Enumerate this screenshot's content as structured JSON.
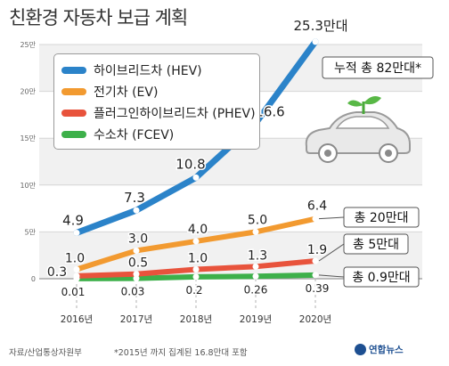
{
  "title": "친환경 자동차 보급 계획",
  "chart_data": {
    "type": "line",
    "categories": [
      "2016년",
      "2017년",
      "2018년",
      "2019년",
      "2020년"
    ],
    "ylim": [
      0,
      25
    ],
    "yticks": [
      "0",
      "5만",
      "10만",
      "15만",
      "20만",
      "25만"
    ],
    "grid": true,
    "series": [
      {
        "name": "하이브리드차 (HEV)",
        "color": "#2b83c9",
        "values": [
          4.9,
          7.3,
          10.8,
          16.6,
          25.3
        ],
        "labels": [
          "4.9",
          "7.3",
          "10.8",
          "16.6",
          "25.3만대"
        ]
      },
      {
        "name": "전기차 (EV)",
        "color": "#f29a30",
        "values": [
          1.0,
          3.0,
          4.0,
          5.0,
          6.4
        ],
        "labels": [
          "1.0",
          "3.0",
          "4.0",
          "5.0",
          "6.4"
        ]
      },
      {
        "name": "플러그인하이브리드차 (PHEV)",
        "color": "#e8533c",
        "values": [
          0.3,
          0.5,
          1.0,
          1.3,
          1.9
        ],
        "labels": [
          "0.3",
          "0.5",
          "1.0",
          "1.3",
          "1.9"
        ]
      },
      {
        "name": "수소차 (FCEV)",
        "color": "#3db04a",
        "values": [
          0.01,
          0.03,
          0.2,
          0.26,
          0.39
        ],
        "labels": [
          "0.01",
          "0.03",
          "0.2",
          "0.26",
          "0.39"
        ]
      }
    ],
    "totals": [
      {
        "text": "누적 총 82만대*",
        "series": 0
      },
      {
        "text": "총 20만대",
        "series": 1
      },
      {
        "text": "총 5만대",
        "series": 2
      },
      {
        "text": "총 0.9만대",
        "series": 3
      }
    ]
  },
  "footer": {
    "source": "자료/산업통상자원부",
    "note": "*2015년 까지 집계된 16.8만대 포함",
    "logo": "연합뉴스"
  }
}
